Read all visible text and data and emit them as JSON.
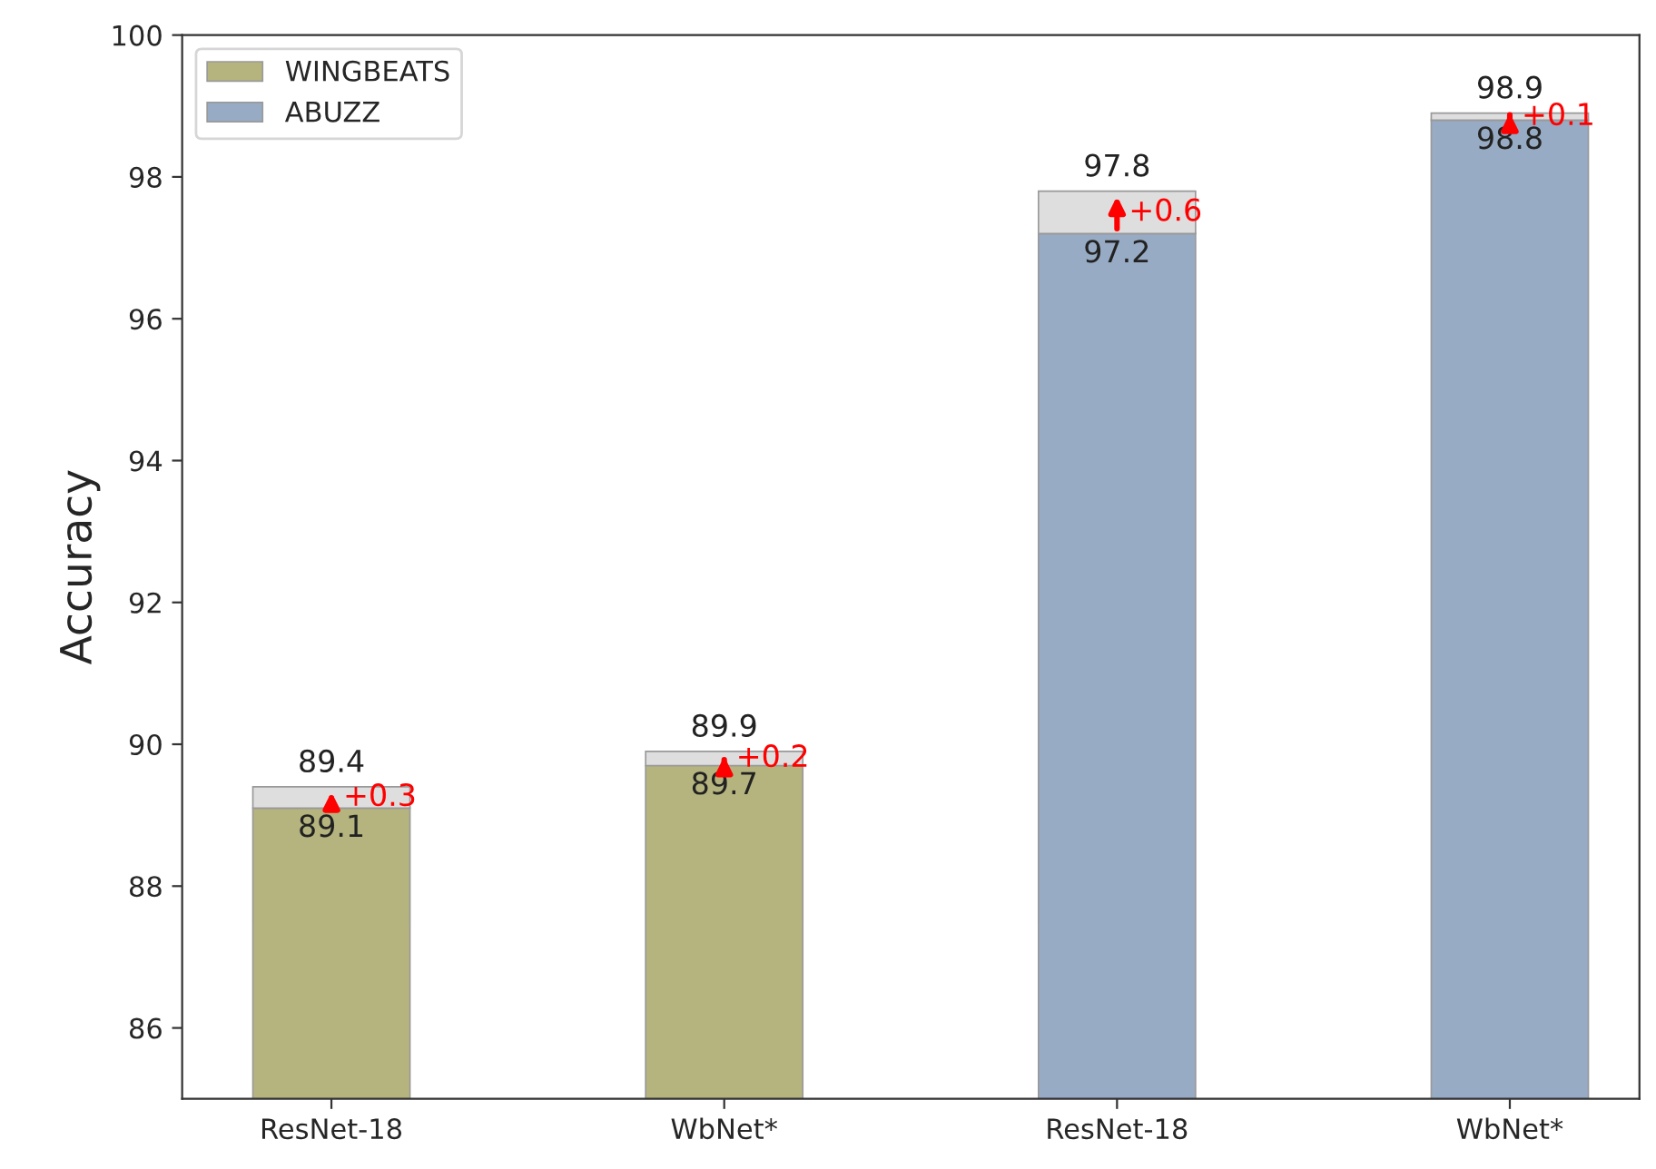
{
  "chart_data": {
    "type": "bar",
    "ylabel": "Accuracy",
    "stacked": true,
    "categories": [
      "ResNet-18",
      "WbNet*",
      "ResNet-18",
      "WbNet*"
    ],
    "series": [
      {
        "name": "WINGBEATS",
        "color": "#b5b47f",
        "values": [
          89.1,
          89.7,
          null,
          null
        ],
        "value_labels": [
          "89.1",
          "89.7",
          null,
          null
        ]
      },
      {
        "name": "ABUZZ",
        "color": "#98abc4",
        "values": [
          null,
          null,
          97.2,
          98.8
        ],
        "value_labels": [
          null,
          null,
          "97.2",
          "98.8"
        ]
      },
      {
        "color": "#dedede",
        "base": [
          89.1,
          89.7,
          97.2,
          98.8
        ],
        "values": [
          0.3,
          0.2,
          0.6,
          0.1
        ],
        "value_labels": [
          "+0.3",
          "+0.2",
          "+0.6",
          "+0.1"
        ]
      }
    ],
    "totals": [
      "89.4",
      "89.9",
      "97.8",
      "98.9"
    ],
    "ylim": [
      85,
      100
    ],
    "yticks": [
      86,
      88,
      90,
      92,
      94,
      96,
      98,
      100
    ],
    "grid": false,
    "legend": "top left"
  }
}
